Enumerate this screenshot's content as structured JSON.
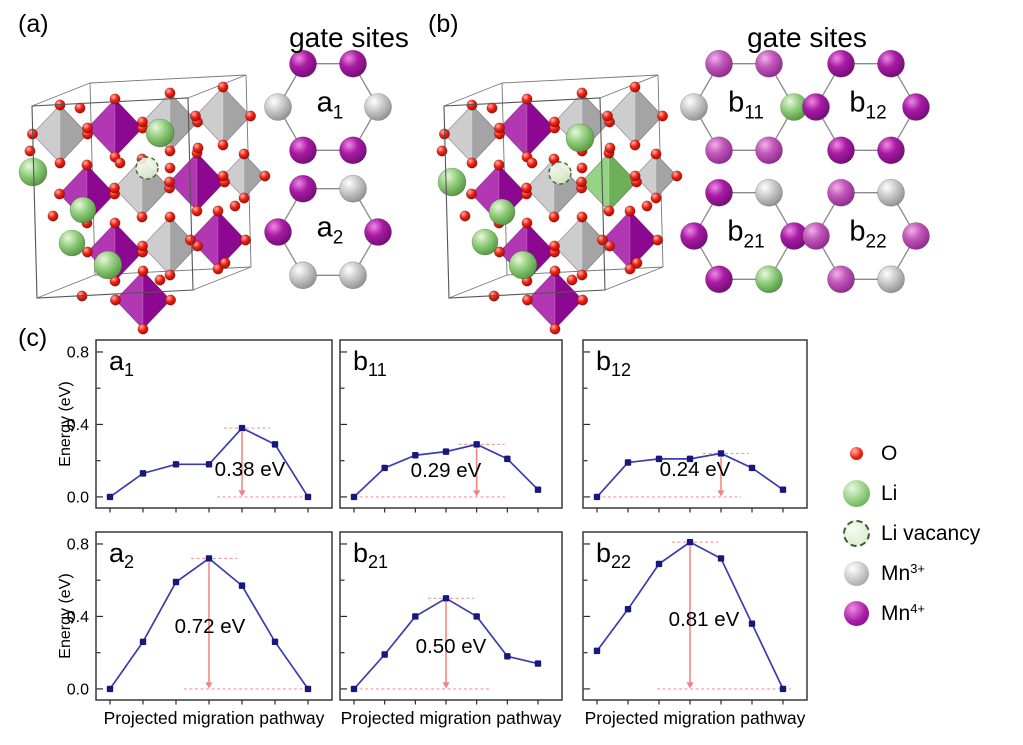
{
  "figure": {
    "panels": {
      "a": {
        "label": "(a)",
        "gate_sites_title": "gate sites",
        "hexagons": [
          {
            "id": "a1",
            "label": {
              "base": "a",
              "sub": "1"
            },
            "vertices_clockwise_from_top_left": [
              "mn4",
              "mn4",
              "mn3",
              "mn4",
              "mn4",
              "mn3"
            ]
          },
          {
            "id": "a2",
            "label": {
              "base": "a",
              "sub": "2"
            },
            "vertices_clockwise_from_top_left": [
              "mn4",
              "mn3",
              "mn4",
              "mn3",
              "mn3",
              "mn4"
            ]
          }
        ]
      },
      "b": {
        "label": "(b)",
        "gate_sites_title": "gate sites",
        "hexagons": [
          {
            "id": "b11",
            "label": {
              "base": "b",
              "sub": "11"
            },
            "vertices_clockwise_from_top_left": [
              "mn4_light",
              "mn4_light",
              "li",
              "mn4_light",
              "mn4_light",
              "mn3"
            ]
          },
          {
            "id": "b12",
            "label": {
              "base": "b",
              "sub": "12"
            },
            "vertices_clockwise_from_top_left": [
              "mn4",
              "mn4",
              "mn4",
              "mn4",
              "mn4",
              "mn4"
            ]
          },
          {
            "id": "b21",
            "label": {
              "base": "b",
              "sub": "21"
            },
            "vertices_clockwise_from_top_left": [
              "mn4",
              "mn3",
              "mn4",
              "li",
              "mn4",
              "mn4"
            ]
          },
          {
            "id": "b22",
            "label": {
              "base": "b",
              "sub": "22"
            },
            "vertices_clockwise_from_top_left": [
              "mn4_light",
              "mn3",
              "mn4_light",
              "mn3",
              "mn4_light",
              "mn4_light"
            ]
          }
        ]
      },
      "c": {
        "label": "(c)"
      }
    },
    "legend": {
      "items": [
        {
          "type": "o",
          "base": "O",
          "sup": ""
        },
        {
          "type": "li",
          "base": "Li",
          "sup": ""
        },
        {
          "type": "li_vacancy",
          "base": "Li vacancy",
          "sup": ""
        },
        {
          "type": "mn3",
          "base": "Mn",
          "sup": "3+"
        },
        {
          "type": "mn4",
          "base": "Mn",
          "sup": "4+"
        }
      ]
    },
    "axes": {
      "ylabel": "Energy (eV)",
      "xlabel": "Projected migration pathway",
      "ytick_labels": [
        "0.0",
        "0.4",
        "0.8"
      ],
      "ytick_values": [
        0.0,
        0.4,
        0.8
      ],
      "ylim": [
        -0.06,
        0.87
      ]
    },
    "colors": {
      "mn4": "#990c9b",
      "mn4_light": "#b544ae",
      "mn3": "#b9b9b9",
      "li": "#7fc36d",
      "o": "#e8170f",
      "line": "#3c3cae",
      "marker": "#17177e",
      "annotation_arrow": "#f57f7f",
      "annotation_dash": "#f89b9b"
    }
  },
  "chart_data": [
    {
      "id": "a1",
      "type": "line",
      "label": {
        "base": "a",
        "sub": "1"
      },
      "x": [
        1,
        2,
        3,
        4,
        5,
        6,
        7
      ],
      "values": [
        0.0,
        0.13,
        0.18,
        0.18,
        0.38,
        0.29,
        0.0
      ],
      "barrier_label": "0.38 eV",
      "barrier_eV": 0.38,
      "peak_index": 4
    },
    {
      "id": "b11",
      "type": "line",
      "label": {
        "base": "b",
        "sub": "11"
      },
      "x": [
        1,
        2,
        3,
        4,
        5,
        6,
        7
      ],
      "values": [
        0.0,
        0.16,
        0.23,
        0.25,
        0.29,
        0.21,
        0.04
      ],
      "barrier_label": "0.29 eV",
      "barrier_eV": 0.29,
      "peak_index": 4
    },
    {
      "id": "b12",
      "type": "line",
      "label": {
        "base": "b",
        "sub": "12"
      },
      "x": [
        1,
        2,
        3,
        4,
        5,
        6,
        7
      ],
      "values": [
        0.0,
        0.19,
        0.21,
        0.21,
        0.24,
        0.16,
        0.04
      ],
      "barrier_label": "0.24 eV",
      "barrier_eV": 0.24,
      "peak_index": 4
    },
    {
      "id": "a2",
      "type": "line",
      "label": {
        "base": "a",
        "sub": "2"
      },
      "x": [
        1,
        2,
        3,
        4,
        5,
        6,
        7
      ],
      "values": [
        0.0,
        0.26,
        0.59,
        0.72,
        0.57,
        0.26,
        0.0
      ],
      "barrier_label": "0.72 eV",
      "barrier_eV": 0.72,
      "peak_index": 3
    },
    {
      "id": "b21",
      "type": "line",
      "label": {
        "base": "b",
        "sub": "21"
      },
      "x": [
        1,
        2,
        3,
        4,
        5,
        6,
        7
      ],
      "values": [
        0.0,
        0.19,
        0.4,
        0.5,
        0.4,
        0.18,
        0.14
      ],
      "barrier_label": "0.50 eV",
      "barrier_eV": 0.5,
      "peak_index": 3
    },
    {
      "id": "b22",
      "type": "line",
      "label": {
        "base": "b",
        "sub": "22"
      },
      "x": [
        1,
        2,
        3,
        4,
        5,
        6,
        7
      ],
      "values": [
        0.21,
        0.44,
        0.69,
        0.81,
        0.72,
        0.36,
        0.0
      ],
      "barrier_label": "0.81 eV",
      "barrier_eV": 0.81,
      "peak_index": 3
    }
  ]
}
